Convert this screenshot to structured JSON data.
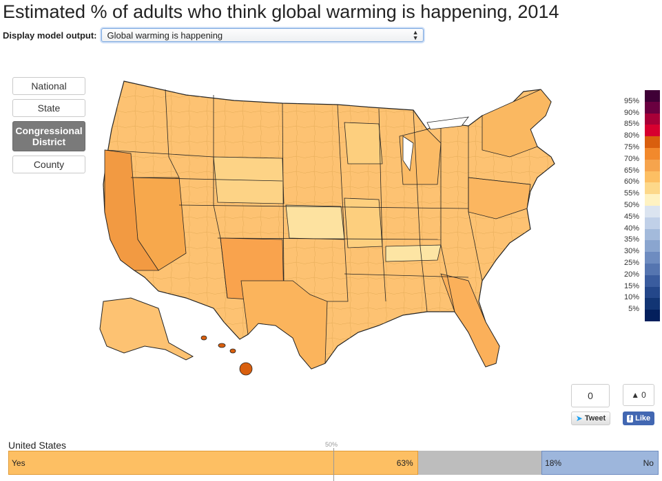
{
  "page": {
    "title": "Estimated % of adults who think global warming is happening, 2014"
  },
  "model": {
    "label": "Display model output:",
    "selected": "Global warming is happening"
  },
  "levels": [
    {
      "label": "National",
      "active": false
    },
    {
      "label": "State",
      "active": false
    },
    {
      "label": "Congressional District",
      "active": true
    },
    {
      "label": "County",
      "active": false
    }
  ],
  "legend": {
    "ticks": [
      "95%",
      "90%",
      "85%",
      "80%",
      "75%",
      "70%",
      "65%",
      "60%",
      "55%",
      "50%",
      "45%",
      "40%",
      "35%",
      "30%",
      "25%",
      "20%",
      "15%",
      "10%",
      "5%"
    ],
    "colors": [
      "#3f0036",
      "#6a0040",
      "#a80038",
      "#d7002f",
      "#d95f0e",
      "#f2892c",
      "#f6a44d",
      "#fdbf63",
      "#fdd88a",
      "#fff2c2",
      "#dbe4f0",
      "#c0d0e8",
      "#a3badb",
      "#8aa5cf",
      "#6e8cc0",
      "#5575b0",
      "#3a5c9e",
      "#24478a",
      "#123574",
      "#041f5c"
    ]
  },
  "social": {
    "tweet_count": "0",
    "tweet_label": "Tweet",
    "like_count": "0",
    "like_label": "Like"
  },
  "summary": {
    "region": "United States",
    "midpoint_label": "50%",
    "yes_label": "Yes",
    "yes_value": "63%",
    "no_label": "No",
    "no_value": "18%",
    "yes_pct": 63,
    "no_pct": 18,
    "yes_color": "#fdbf63",
    "no_color": "#9db6dc",
    "neutral_color": "#bdbdbd"
  }
}
